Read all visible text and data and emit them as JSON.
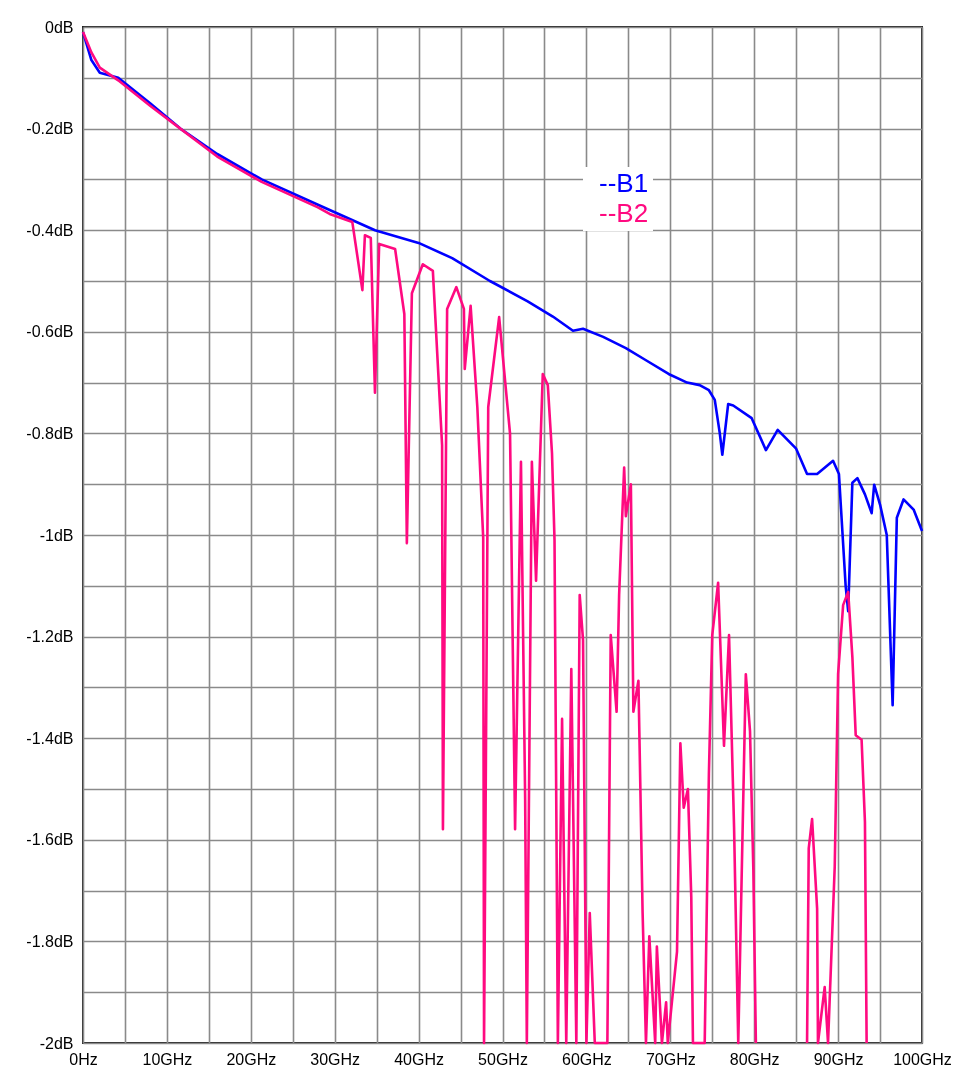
{
  "chart_data": {
    "type": "line",
    "xlim": [
      0,
      100
    ],
    "ylim": [
      -2,
      0
    ],
    "xticks": [
      {
        "value": 0,
        "label": "0Hz"
      },
      {
        "value": 5,
        "label": null
      },
      {
        "value": 10,
        "label": "10GHz"
      },
      {
        "value": 15,
        "label": null
      },
      {
        "value": 20,
        "label": "20GHz"
      },
      {
        "value": 25,
        "label": null
      },
      {
        "value": 30,
        "label": "30GHz"
      },
      {
        "value": 35,
        "label": null
      },
      {
        "value": 40,
        "label": "40GHz"
      },
      {
        "value": 45,
        "label": null
      },
      {
        "value": 50,
        "label": "50GHz"
      },
      {
        "value": 55,
        "label": null
      },
      {
        "value": 60,
        "label": "60GHz"
      },
      {
        "value": 65,
        "label": null
      },
      {
        "value": 70,
        "label": "70GHz"
      },
      {
        "value": 75,
        "label": null
      },
      {
        "value": 80,
        "label": "80GHz"
      },
      {
        "value": 85,
        "label": null
      },
      {
        "value": 90,
        "label": "90GHz"
      },
      {
        "value": 95,
        "label": null
      },
      {
        "value": 100,
        "label": "100GHz"
      }
    ],
    "yticks": [
      {
        "value": 0,
        "label": "0dB"
      },
      {
        "value": -0.1,
        "label": null
      },
      {
        "value": -0.2,
        "label": "-0.2dB"
      },
      {
        "value": -0.3,
        "label": null
      },
      {
        "value": -0.4,
        "label": "-0.4dB"
      },
      {
        "value": -0.5,
        "label": null
      },
      {
        "value": -0.6,
        "label": "-0.6dB"
      },
      {
        "value": -0.7,
        "label": null
      },
      {
        "value": -0.8,
        "label": "-0.8dB"
      },
      {
        "value": -0.9,
        "label": null
      },
      {
        "value": -1,
        "label": "-1dB"
      },
      {
        "value": -1.1,
        "label": null
      },
      {
        "value": -1.2,
        "label": "-1.2dB"
      },
      {
        "value": -1.3,
        "label": null
      },
      {
        "value": -1.4,
        "label": "-1.4dB"
      },
      {
        "value": -1.5,
        "label": null
      },
      {
        "value": -1.6,
        "label": "-1.6dB"
      },
      {
        "value": -1.7,
        "label": null
      },
      {
        "value": -1.8,
        "label": "-1.8dB"
      },
      {
        "value": -1.9,
        "label": null
      },
      {
        "value": -2,
        "label": "-2dB"
      }
    ],
    "grid": true,
    "legend": "top right",
    "line_style": "solid",
    "marker": "none",
    "series": [
      {
        "name": "--B1",
        "color": "#0000ff",
        "x": [
          0,
          1,
          2,
          4.2,
          8,
          11.6,
          16,
          21.3,
          28,
          34.8,
          40,
          44,
          48.5,
          53,
          56,
          58.4,
          59.6,
          62,
          64.7,
          67,
          69.8,
          72,
          73.5,
          74.6,
          75.3,
          75.9,
          76.2,
          76.9,
          77.5,
          79.7,
          81.4,
          82.8,
          85,
          86.3,
          87.5,
          89.4,
          90.1,
          90.9,
          91.2,
          91.7,
          92.3,
          93.2,
          94,
          94.3,
          95,
          95.8,
          96.5,
          97,
          97.8,
          99,
          100
        ],
        "values": [
          -0.01,
          -0.065,
          -0.09,
          -0.1,
          -0.15,
          -0.2,
          -0.25,
          -0.3,
          -0.35,
          -0.4,
          -0.425,
          -0.455,
          -0.5,
          -0.54,
          -0.57,
          -0.598,
          -0.594,
          -0.61,
          -0.632,
          -0.655,
          -0.683,
          -0.7,
          -0.705,
          -0.715,
          -0.734,
          -0.8,
          -0.842,
          -0.742,
          -0.745,
          -0.77,
          -0.833,
          -0.793,
          -0.83,
          -0.88,
          -0.88,
          -0.854,
          -0.88,
          -1.1,
          -1.15,
          -0.897,
          -0.888,
          -0.92,
          -0.957,
          -0.901,
          -0.94,
          -1.0,
          -1.335,
          -0.966,
          -0.93,
          -0.95,
          -0.992
        ]
      },
      {
        "name": "--B2",
        "color": "#ff0a80",
        "x": [
          0,
          1,
          2,
          4.2,
          8,
          11.6,
          16,
          21.3,
          28,
          29.4,
          32.1,
          33.3,
          33.6,
          34.3,
          34.8,
          35.3,
          37.2,
          38.3,
          38.6,
          39.2,
          40.5,
          41.7,
          42.8,
          42.9,
          43.4,
          44.5,
          45.4,
          45.5,
          46.2,
          47,
          47.7,
          47.8,
          48.3,
          49.6,
          50.9,
          51.5,
          52.2,
          52.7,
          52.9,
          53.5,
          54,
          54.8,
          55.4,
          55.9,
          56.2,
          56.6,
          57.1,
          57.6,
          58.2,
          58.8,
          59.2,
          59.6,
          60,
          60.4,
          61,
          62.5,
          62.9,
          63.6,
          63.9,
          64.5,
          64.7,
          65.3,
          65.6,
          66.2,
          66.7,
          67.1,
          67.5,
          68.2,
          68.4,
          69,
          69.5,
          69.7,
          70.8,
          71.2,
          71.6,
          72.1,
          72.5,
          72.7,
          74.1,
          74.6,
          75,
          75.7,
          76.4,
          77,
          77.6,
          78.1,
          79,
          79.5,
          79.9,
          80.2,
          83,
          86.3,
          86.5,
          86.9,
          87.5,
          87.6,
          88.4,
          88.8,
          89.6,
          90,
          90.6,
          91.2,
          91.7,
          92.1,
          92.8,
          93.2,
          93.4
        ],
        "values": [
          -0.01,
          -0.05,
          -0.08,
          -0.105,
          -0.155,
          -0.2,
          -0.255,
          -0.305,
          -0.355,
          -0.368,
          -0.384,
          -0.518,
          -0.41,
          -0.415,
          -0.72,
          -0.427,
          -0.437,
          -0.565,
          -1.016,
          -0.524,
          -0.467,
          -0.48,
          -0.823,
          -1.579,
          -0.555,
          -0.512,
          -0.555,
          -0.673,
          -0.549,
          -0.748,
          -1.006,
          -2,
          -0.748,
          -0.571,
          -0.801,
          -1.579,
          -0.856,
          -1.52,
          -2,
          -0.856,
          -1.09,
          -0.683,
          -0.705,
          -0.839,
          -1.01,
          -2,
          -1.362,
          -2,
          -1.264,
          -2,
          -1.118,
          -1.207,
          -2,
          -1.744,
          -2,
          -2,
          -1.197,
          -1.348,
          -1.118,
          -0.867,
          -0.963,
          -0.9,
          -1.348,
          -1.287,
          -1.744,
          -2,
          -1.79,
          -2,
          -1.81,
          -2,
          -1.92,
          -2,
          -1.82,
          -1.41,
          -1.537,
          -1.5,
          -1.713,
          -2,
          -2,
          -1.47,
          -1.197,
          -1.094,
          -1.415,
          -1.197,
          -1.575,
          -2,
          -1.274,
          -1.386,
          -1.66,
          -2,
          null,
          -2,
          -1.617,
          -1.559,
          -1.736,
          -2,
          -1.89,
          -2,
          -1.652,
          -1.274,
          -1.138,
          -1.112,
          -1.24,
          -1.394,
          -1.403,
          -1.565,
          -2
        ]
      }
    ]
  }
}
